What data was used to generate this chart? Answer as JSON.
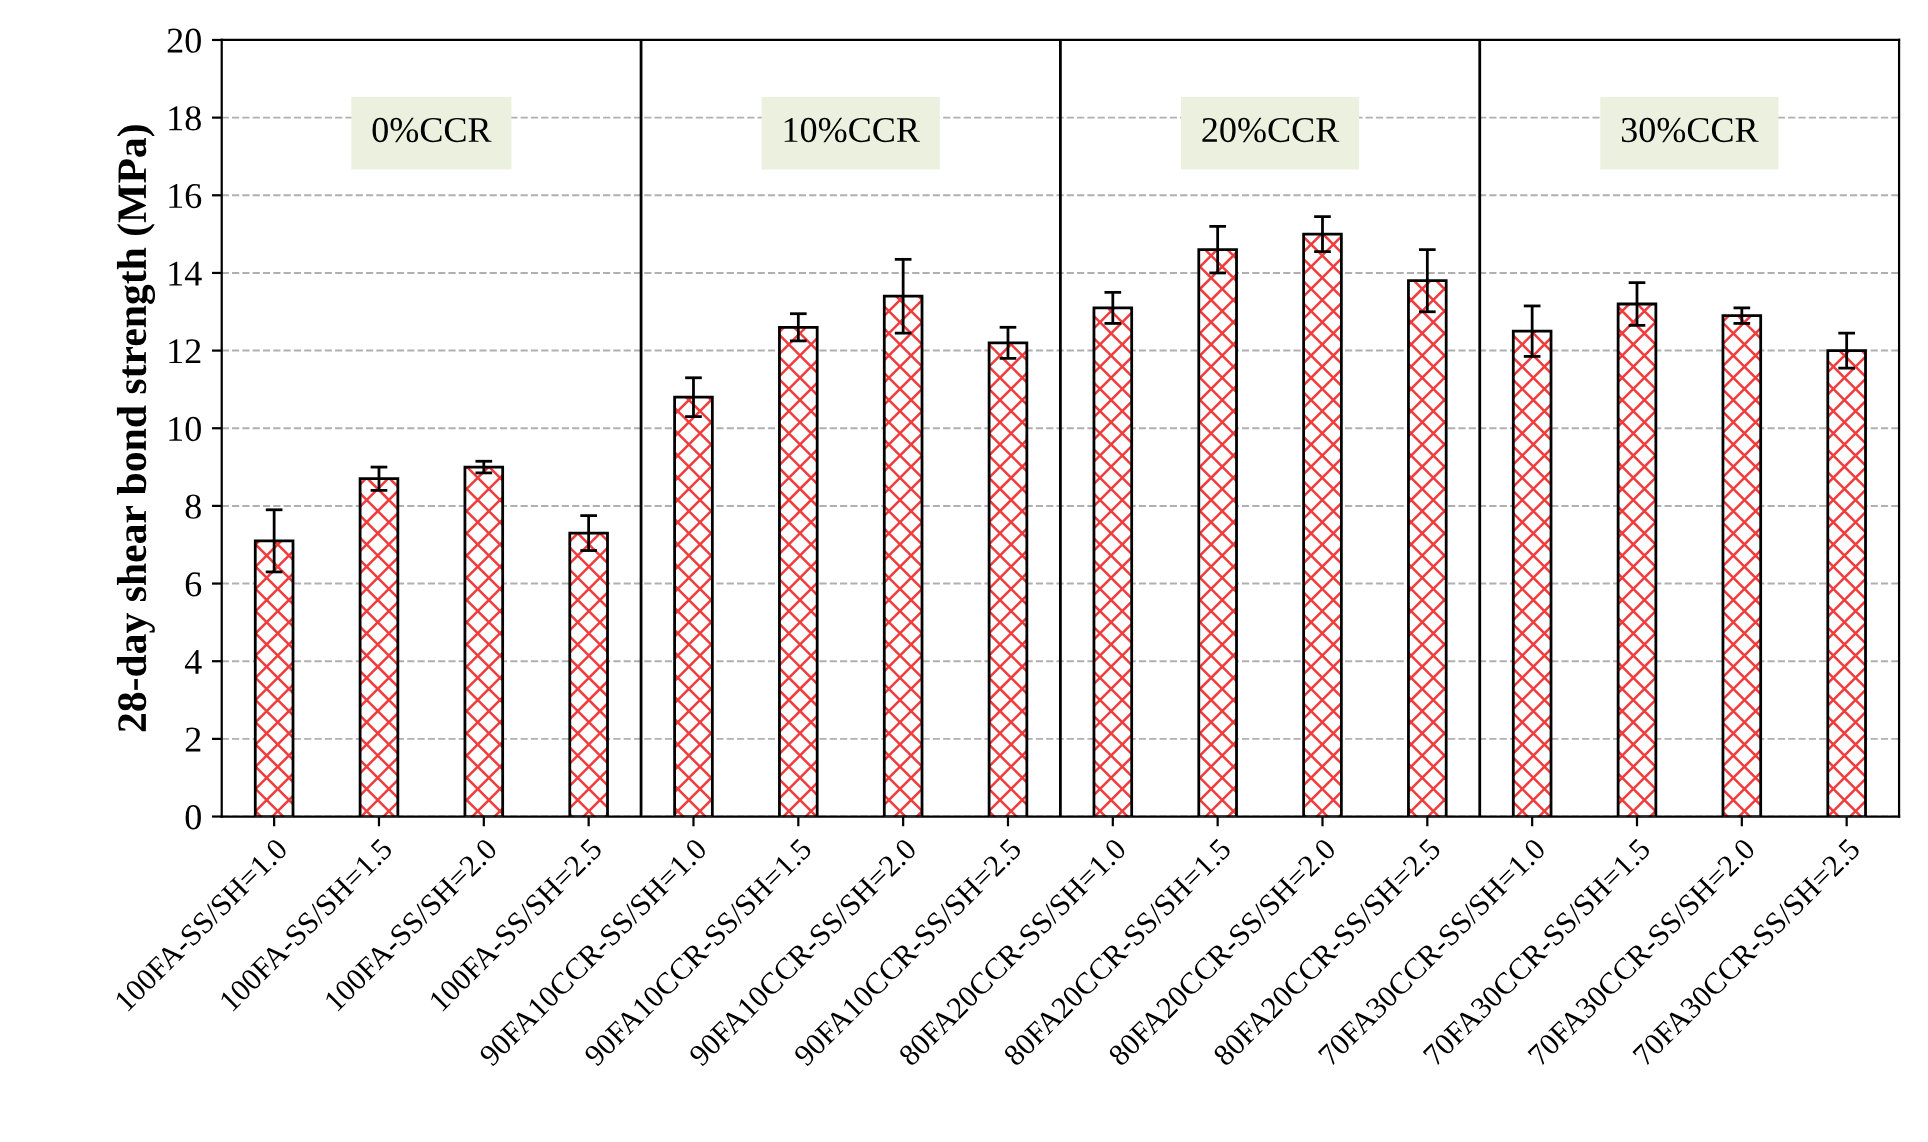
{
  "chart_data": {
    "type": "bar",
    "ylabel": "28-day shear bond strength (MPa)",
    "categories": [
      "100FA-SS/SH=1.0",
      "100FA-SS/SH=1.5",
      "100FA-SS/SH=2.0",
      "100FA-SS/SH=2.5",
      "90FA10CCR-SS/SH=1.0",
      "90FA10CCR-SS/SH=1.5",
      "90FA10CCR-SS/SH=2.0",
      "90FA10CCR-SS/SH=2.5",
      "80FA20CCR-SS/SH=1.0",
      "80FA20CCR-SS/SH=1.5",
      "80FA20CCR-SS/SH=2.0",
      "80FA20CCR-SS/SH=2.5",
      "70FA30CCR-SS/SH=1.0",
      "70FA30CCR-SS/SH=1.5",
      "70FA30CCR-SS/SH=2.0",
      "70FA30CCR-SS/SH=2.5"
    ],
    "values": [
      7.1,
      8.7,
      9.0,
      7.3,
      10.8,
      12.6,
      13.4,
      12.2,
      13.1,
      14.6,
      15.0,
      13.8,
      12.5,
      13.2,
      12.9,
      12.0
    ],
    "errors": [
      0.8,
      0.3,
      0.15,
      0.45,
      0.5,
      0.35,
      0.95,
      0.4,
      0.4,
      0.6,
      0.45,
      0.8,
      0.65,
      0.55,
      0.2,
      0.45
    ],
    "color": "#f03c3c",
    "ylim": [
      0,
      20
    ],
    "yticks": [
      0,
      2,
      4,
      6,
      8,
      10,
      12,
      14,
      16,
      18,
      20
    ],
    "grid": "y",
    "annotations": [
      "0%CCR",
      "10%CCR",
      "20%CCR",
      "30%CCR"
    ]
  }
}
